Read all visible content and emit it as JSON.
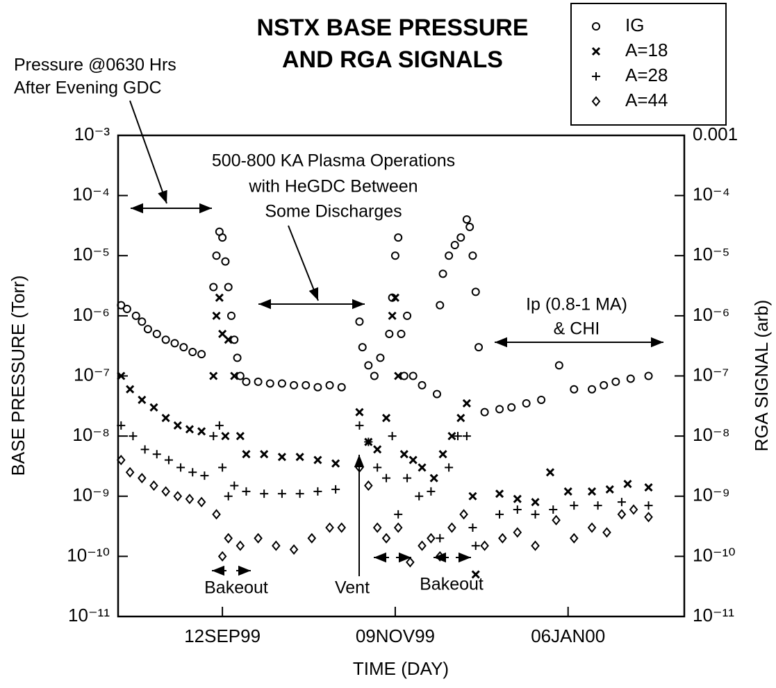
{
  "chart_data": {
    "type": "scatter",
    "title": [
      "NSTX BASE PRESSURE",
      "AND RGA SIGNALS"
    ],
    "x_label": "TIME (DAY)",
    "y_label": "BASE PRESSURE (Torr)",
    "y2_label": "RGA SIGNAL (arb)",
    "log_y": true,
    "legend": "top-right",
    "xlim": [
      "1999-08-08",
      "2000-02-14"
    ],
    "xticks": [
      {
        "value": "1999-09-12",
        "label": "12SEP99"
      },
      {
        "value": "1999-11-09",
        "label": "09NOV99"
      },
      {
        "value": "2000-01-06",
        "label": "06JAN00"
      }
    ],
    "ylim": [
      1e-11,
      0.001
    ],
    "yticks": [
      {
        "value": 1e-11,
        "label": "10⁻¹¹"
      },
      {
        "value": 1e-10,
        "label": "10⁻¹⁰"
      },
      {
        "value": 1e-09,
        "label": "10⁻⁹"
      },
      {
        "value": 1e-08,
        "label": "10⁻⁸"
      },
      {
        "value": 1e-07,
        "label": "10⁻⁷"
      },
      {
        "value": 1e-06,
        "label": "10⁻⁶"
      },
      {
        "value": 1e-05,
        "label": "10⁻⁵"
      },
      {
        "value": 0.0001,
        "label": "10⁻⁴"
      },
      {
        "value": 0.001,
        "label": "10⁻³"
      }
    ],
    "y2lim": [
      1e-11,
      0.001
    ],
    "y2ticks": [
      {
        "value": 1e-11,
        "label": "10⁻¹¹"
      },
      {
        "value": 1e-10,
        "label": "10⁻¹⁰"
      },
      {
        "value": 1e-09,
        "label": "10⁻⁹"
      },
      {
        "value": 1e-08,
        "label": "10⁻⁸"
      },
      {
        "value": 1e-07,
        "label": "10⁻⁷"
      },
      {
        "value": 1e-06,
        "label": "10⁻⁶"
      },
      {
        "value": 1e-05,
        "label": "10⁻⁵"
      },
      {
        "value": 0.0001,
        "label": "10⁻⁴"
      },
      0.001
    ],
    "annotations": [
      "Pressure @0630 Hrs",
      "After Evening GDC",
      "500-800 KA Plasma Operations",
      "with HeGDC Between",
      "Some Discharges",
      "Ip (0.8-1 MA)",
      "& CHI",
      "Bakeout",
      "Vent",
      "Bakeout"
    ],
    "series": [
      {
        "name": "IG",
        "marker": "circle",
        "color": "#000000",
        "x": [
          "1999-08-09",
          "1999-08-11",
          "1999-08-14",
          "1999-08-16",
          "1999-08-18",
          "1999-08-21",
          "1999-08-24",
          "1999-08-27",
          "1999-08-30",
          "1999-09-02",
          "1999-09-05",
          "1999-09-09",
          "1999-09-10",
          "1999-09-11",
          "1999-09-12",
          "1999-09-13",
          "1999-09-14",
          "1999-09-15",
          "1999-09-16",
          "1999-09-17",
          "1999-09-18",
          "1999-09-20",
          "1999-09-24",
          "1999-09-28",
          "1999-10-02",
          "1999-10-06",
          "1999-10-10",
          "1999-10-14",
          "1999-10-18",
          "1999-10-22",
          "1999-10-28",
          "1999-10-29",
          "1999-10-31",
          "1999-11-02",
          "1999-11-04",
          "1999-11-07",
          "1999-11-08",
          "1999-11-09",
          "1999-11-10",
          "1999-11-11",
          "1999-11-12",
          "1999-11-13",
          "1999-11-15",
          "1999-11-18",
          "1999-11-23",
          "1999-11-24",
          "1999-11-25",
          "1999-11-27",
          "1999-11-29",
          "1999-12-01",
          "1999-12-03",
          "1999-12-04",
          "1999-12-05",
          "1999-12-06",
          "1999-12-07",
          "1999-12-09",
          "1999-12-14",
          "1999-12-18",
          "1999-12-23",
          "1999-12-28",
          "2000-01-03",
          "2000-01-08",
          "2000-01-14",
          "2000-01-18",
          "2000-01-22",
          "2000-01-27",
          "2000-02-02"
        ],
        "values": [
          1.5e-06,
          1.3e-06,
          1e-06,
          8e-07,
          6e-07,
          5e-07,
          4e-07,
          3.5e-07,
          3e-07,
          2.5e-07,
          2.3e-07,
          3e-06,
          1e-05,
          2.5e-05,
          2e-05,
          8e-06,
          3e-06,
          1e-06,
          4e-07,
          2e-07,
          1e-07,
          8e-08,
          8e-08,
          7.5e-08,
          7.5e-08,
          7e-08,
          7e-08,
          6.5e-08,
          7e-08,
          6.5e-08,
          8e-07,
          3e-07,
          1.5e-07,
          1e-07,
          2e-07,
          5e-07,
          2e-06,
          1e-05,
          2e-05,
          5e-07,
          1e-07,
          1e-06,
          1e-07,
          7e-08,
          5e-08,
          1.5e-06,
          5e-06,
          1e-05,
          1.5e-05,
          2e-05,
          4e-05,
          3e-05,
          1e-05,
          2.5e-06,
          3e-07,
          2.5e-08,
          2.8e-08,
          3e-08,
          3.5e-08,
          4e-08,
          1.5e-07,
          6e-08,
          6e-08,
          7e-08,
          8e-08,
          9e-08,
          1e-07
        ]
      },
      {
        "name": "A=18",
        "marker": "x",
        "color": "#000000",
        "x": [
          "1999-08-09",
          "1999-08-12",
          "1999-08-16",
          "1999-08-20",
          "1999-08-24",
          "1999-08-28",
          "1999-09-01",
          "1999-09-05",
          "1999-09-09",
          "1999-09-10",
          "1999-09-11",
          "1999-09-12",
          "1999-09-13",
          "1999-09-14",
          "1999-09-16",
          "1999-09-18",
          "1999-09-20",
          "1999-09-26",
          "1999-10-02",
          "1999-10-08",
          "1999-10-14",
          "1999-10-20",
          "1999-10-28",
          "1999-10-31",
          "1999-11-03",
          "1999-11-06",
          "1999-11-08",
          "1999-11-09",
          "1999-11-10",
          "1999-11-12",
          "1999-11-15",
          "1999-11-18",
          "1999-11-22",
          "1999-11-25",
          "1999-11-28",
          "1999-12-01",
          "1999-12-03",
          "1999-12-05",
          "1999-12-06",
          "1999-12-14",
          "1999-12-20",
          "1999-12-26",
          "1999-12-31",
          "2000-01-06",
          "2000-01-14",
          "2000-01-20",
          "2000-01-26",
          "2000-02-02"
        ],
        "values": [
          1e-07,
          6e-08,
          4e-08,
          3e-08,
          2e-08,
          1.5e-08,
          1.3e-08,
          1.2e-08,
          1e-07,
          1e-06,
          2e-06,
          5e-07,
          1e-08,
          4e-07,
          1e-07,
          1e-08,
          5e-09,
          5e-09,
          4.5e-09,
          4.5e-09,
          4e-09,
          3.5e-09,
          2.5e-08,
          8e-09,
          6e-09,
          2e-08,
          1e-06,
          2e-06,
          1e-07,
          5e-09,
          4e-09,
          3e-09,
          2e-09,
          5e-09,
          1e-08,
          2e-08,
          3.5e-08,
          1e-09,
          5e-11,
          1.1e-09,
          9e-10,
          8e-10,
          2.5e-09,
          1.2e-09,
          1.2e-09,
          1.3e-09,
          1.6e-09,
          1.4e-09
        ]
      },
      {
        "name": "A=28",
        "marker": "plus",
        "color": "#000000",
        "x": [
          "1999-08-09",
          "1999-08-13",
          "1999-08-17",
          "1999-08-21",
          "1999-08-25",
          "1999-08-29",
          "1999-09-02",
          "1999-09-06",
          "1999-09-09",
          "1999-09-11",
          "1999-09-12",
          "1999-09-14",
          "1999-09-16",
          "1999-09-20",
          "1999-09-26",
          "1999-10-02",
          "1999-10-08",
          "1999-10-14",
          "1999-10-20",
          "1999-10-28",
          "1999-10-31",
          "1999-11-03",
          "1999-11-06",
          "1999-11-08",
          "1999-11-10",
          "1999-11-13",
          "1999-11-17",
          "1999-11-21",
          "1999-11-24",
          "1999-11-27",
          "1999-11-30",
          "1999-12-03",
          "1999-12-05",
          "1999-12-06",
          "1999-12-14",
          "1999-12-20",
          "1999-12-26",
          "2000-01-01",
          "2000-01-08",
          "2000-01-16",
          "2000-01-24",
          "2000-02-02"
        ],
        "values": [
          1.5e-08,
          1e-08,
          6e-09,
          5e-09,
          4e-09,
          3e-09,
          2.5e-09,
          2.2e-09,
          1e-08,
          1.5e-08,
          3e-09,
          1e-09,
          1.5e-09,
          1.2e-09,
          1.1e-09,
          1.1e-09,
          1.1e-09,
          1.2e-09,
          1.3e-09,
          1.5e-08,
          8e-09,
          3e-09,
          2e-09,
          1e-08,
          5e-10,
          2e-09,
          1e-09,
          1.2e-09,
          2e-10,
          3e-09,
          1e-08,
          1e-08,
          3e-10,
          1.5e-10,
          5e-10,
          6e-10,
          5e-10,
          6e-10,
          7e-10,
          7e-10,
          8e-10,
          7e-10
        ]
      },
      {
        "name": "A=44",
        "marker": "diamond",
        "color": "#000000",
        "x": [
          "1999-08-09",
          "1999-08-12",
          "1999-08-16",
          "1999-08-20",
          "1999-08-24",
          "1999-08-28",
          "1999-09-01",
          "1999-09-05",
          "1999-09-10",
          "1999-09-12",
          "1999-09-14",
          "1999-09-18",
          "1999-09-24",
          "1999-09-30",
          "1999-10-06",
          "1999-10-12",
          "1999-10-18",
          "1999-10-22",
          "1999-10-28",
          "1999-10-31",
          "1999-11-03",
          "1999-11-06",
          "1999-11-10",
          "1999-11-14",
          "1999-11-18",
          "1999-11-21",
          "1999-11-24",
          "1999-11-28",
          "1999-12-02",
          "1999-12-09",
          "1999-12-15",
          "1999-12-20",
          "1999-12-26",
          "2000-01-02",
          "2000-01-08",
          "2000-01-14",
          "2000-01-19",
          "2000-01-24",
          "2000-01-28",
          "2000-02-02"
        ],
        "values": [
          4e-09,
          2.5e-09,
          2e-09,
          1.5e-09,
          1.2e-09,
          1e-09,
          9e-10,
          8e-10,
          5e-10,
          1e-10,
          2e-10,
          1.5e-10,
          2e-10,
          1.5e-10,
          1.3e-10,
          2e-10,
          3e-10,
          3e-10,
          3e-09,
          1.5e-09,
          3e-10,
          2e-10,
          3e-10,
          8e-11,
          1.5e-10,
          2e-10,
          1e-10,
          3e-10,
          5e-10,
          1.5e-10,
          2e-10,
          2.5e-10,
          1.5e-10,
          4e-10,
          2e-10,
          3e-10,
          2.5e-10,
          5e-10,
          6e-10,
          4.5e-10
        ]
      }
    ]
  }
}
